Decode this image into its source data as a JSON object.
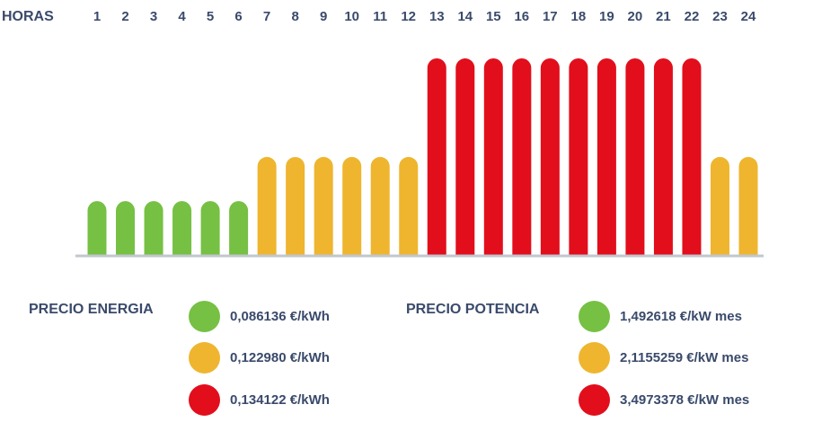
{
  "chart_data": {
    "type": "bar",
    "xlabel": "HORAS",
    "categories": [
      "1",
      "2",
      "3",
      "4",
      "5",
      "6",
      "7",
      "8",
      "9",
      "10",
      "11",
      "12",
      "13",
      "14",
      "15",
      "16",
      "17",
      "18",
      "19",
      "20",
      "21",
      "22",
      "23",
      "24"
    ],
    "tier_per_hour": [
      0,
      0,
      0,
      0,
      0,
      0,
      1,
      1,
      1,
      1,
      1,
      1,
      2,
      2,
      2,
      2,
      2,
      2,
      2,
      2,
      2,
      2,
      1,
      1
    ],
    "values": [
      0.086136,
      0.086136,
      0.086136,
      0.086136,
      0.086136,
      0.086136,
      0.12298,
      0.12298,
      0.12298,
      0.12298,
      0.12298,
      0.12298,
      0.134122,
      0.134122,
      0.134122,
      0.134122,
      0.134122,
      0.134122,
      0.134122,
      0.134122,
      0.134122,
      0.134122,
      0.12298,
      0.12298
    ],
    "relative_height": [
      1,
      1,
      1,
      1,
      1,
      1,
      1.82,
      1.82,
      1.82,
      1.82,
      1.82,
      1.82,
      3.65,
      3.65,
      3.65,
      3.65,
      3.65,
      3.65,
      3.65,
      3.65,
      3.65,
      3.65,
      1.82,
      1.82
    ],
    "tier_colors": [
      "#76c043",
      "#efb52f",
      "#e20e1c"
    ]
  },
  "legend": {
    "energy_title": "PRECIO ENERGIA",
    "energy_prices": [
      "0,086136 €/kWh",
      "0,122980 €/kWh",
      "0,134122 €/kWh"
    ],
    "power_title": "PRECIO POTENCIA",
    "power_prices": [
      "1,492618 €/kW mes",
      "2,1155259 €/kW mes",
      "3,4973378 €/kW mes"
    ]
  }
}
